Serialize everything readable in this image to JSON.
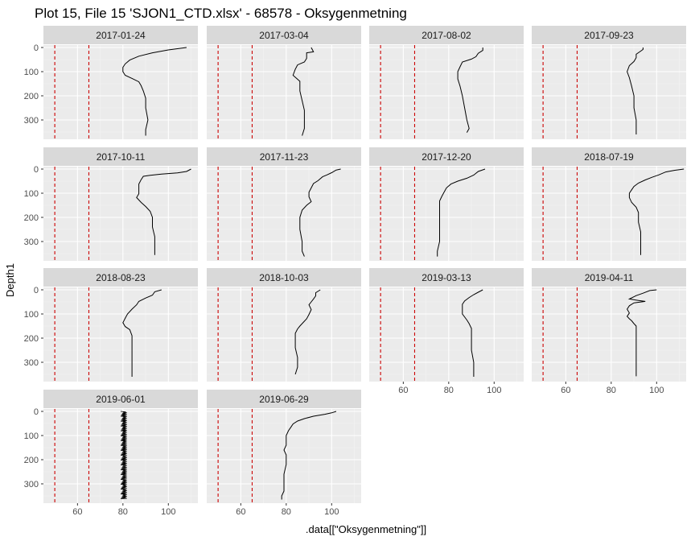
{
  "chart_data": {
    "type": "line",
    "title": "Plot 15, File 15 'SJON1_CTD.xlsx' - 68578  -  Oksygenmetning",
    "xlabel": ".data[[\"Oksygenmetning\"]]",
    "ylabel": "Depth1",
    "xlim": [
      45,
      113
    ],
    "ylim": [
      380,
      -10
    ],
    "y_reversed": true,
    "x_ticks": [
      60,
      80,
      100
    ],
    "y_ticks": [
      0,
      100,
      200,
      300
    ],
    "reference_lines_x": [
      50,
      65
    ],
    "reference_line_color": "#cc0000",
    "panel_background": "#ebebeb",
    "strip_background": "#d9d9d9",
    "grid": true,
    "facets": [
      {
        "label": "2017-01-24",
        "profile": [
          [
            108,
            0
          ],
          [
            100,
            10
          ],
          [
            93,
            22
          ],
          [
            87,
            36
          ],
          [
            83,
            52
          ],
          [
            81,
            68
          ],
          [
            80,
            82
          ],
          [
            80,
            100
          ],
          [
            81,
            115
          ],
          [
            84,
            128
          ],
          [
            87,
            142
          ],
          [
            88,
            158
          ],
          [
            89,
            180
          ],
          [
            90,
            210
          ],
          [
            90,
            250
          ],
          [
            91,
            300
          ],
          [
            90,
            340
          ],
          [
            90,
            365
          ]
        ]
      },
      {
        "label": "2017-03-04",
        "profile": [
          [
            91,
            0
          ],
          [
            92,
            18
          ],
          [
            89,
            22
          ],
          [
            89,
            45
          ],
          [
            88,
            60
          ],
          [
            85,
            72
          ],
          [
            84,
            90
          ],
          [
            83,
            115
          ],
          [
            86,
            140
          ],
          [
            86,
            180
          ],
          [
            87,
            220
          ],
          [
            88,
            260
          ],
          [
            88,
            300
          ],
          [
            88,
            335
          ],
          [
            87,
            365
          ]
        ]
      },
      {
        "label": "2017-08-02",
        "profile": [
          [
            95,
            0
          ],
          [
            95,
            12
          ],
          [
            93,
            24
          ],
          [
            92,
            38
          ],
          [
            90,
            48
          ],
          [
            86,
            60
          ],
          [
            85,
            80
          ],
          [
            84,
            100
          ],
          [
            84,
            130
          ],
          [
            85,
            160
          ],
          [
            86,
            200
          ],
          [
            87,
            250
          ],
          [
            88,
            300
          ],
          [
            89,
            335
          ],
          [
            88,
            352
          ]
        ]
      },
      {
        "label": "2017-09-23",
        "profile": [
          [
            94,
            0
          ],
          [
            94,
            8
          ],
          [
            93,
            15
          ],
          [
            91,
            28
          ],
          [
            91,
            42
          ],
          [
            90,
            58
          ],
          [
            88,
            75
          ],
          [
            87,
            100
          ],
          [
            88,
            125
          ],
          [
            89,
            160
          ],
          [
            90,
            200
          ],
          [
            90,
            250
          ],
          [
            91,
            300
          ],
          [
            91,
            360
          ]
        ]
      },
      {
        "label": "2017-10-11",
        "profile": [
          [
            110,
            0
          ],
          [
            108,
            10
          ],
          [
            104,
            16
          ],
          [
            97,
            21
          ],
          [
            92,
            26
          ],
          [
            89,
            30
          ],
          [
            88,
            44
          ],
          [
            87,
            62
          ],
          [
            87,
            82
          ],
          [
            87,
            102
          ],
          [
            86,
            118
          ],
          [
            88,
            138
          ],
          [
            90,
            155
          ],
          [
            92,
            175
          ],
          [
            93,
            200
          ],
          [
            93,
            240
          ],
          [
            94,
            280
          ],
          [
            94,
            320
          ],
          [
            94,
            356
          ]
        ]
      },
      {
        "label": "2017-11-23",
        "profile": [
          [
            104,
            0
          ],
          [
            102,
            4
          ],
          [
            100,
            15
          ],
          [
            98,
            24
          ],
          [
            96,
            32
          ],
          [
            94,
            48
          ],
          [
            92,
            60
          ],
          [
            91,
            78
          ],
          [
            90,
            96
          ],
          [
            90,
            115
          ],
          [
            91,
            135
          ],
          [
            89,
            150
          ],
          [
            87,
            170
          ],
          [
            86,
            200
          ],
          [
            86,
            250
          ],
          [
            87,
            300
          ],
          [
            87,
            340
          ],
          [
            88,
            362
          ]
        ]
      },
      {
        "label": "2017-12-20",
        "profile": [
          [
            96,
            0
          ],
          [
            93,
            10
          ],
          [
            91,
            25
          ],
          [
            88,
            38
          ],
          [
            84,
            50
          ],
          [
            81,
            62
          ],
          [
            79,
            78
          ],
          [
            78,
            95
          ],
          [
            77,
            112
          ],
          [
            76,
            132
          ],
          [
            76,
            160
          ],
          [
            76,
            200
          ],
          [
            76,
            250
          ],
          [
            76,
            300
          ],
          [
            75,
            340
          ],
          [
            75,
            362
          ]
        ]
      },
      {
        "label": "2018-07-19",
        "profile": [
          [
            112,
            0
          ],
          [
            108,
            5
          ],
          [
            104,
            12
          ],
          [
            101,
            24
          ],
          [
            98,
            34
          ],
          [
            95,
            45
          ],
          [
            92,
            58
          ],
          [
            90,
            72
          ],
          [
            89,
            86
          ],
          [
            88,
            100
          ],
          [
            88,
            118
          ],
          [
            89,
            138
          ],
          [
            91,
            158
          ],
          [
            92,
            180
          ],
          [
            92,
            220
          ],
          [
            93,
            260
          ],
          [
            93,
            300
          ],
          [
            93,
            356
          ]
        ]
      },
      {
        "label": "2018-08-23",
        "profile": [
          [
            97,
            0
          ],
          [
            94,
            8
          ],
          [
            93,
            22
          ],
          [
            90,
            34
          ],
          [
            87,
            48
          ],
          [
            86,
            62
          ],
          [
            84,
            80
          ],
          [
            82,
            100
          ],
          [
            81,
            118
          ],
          [
            80,
            136
          ],
          [
            81,
            152
          ],
          [
            83,
            165
          ],
          [
            84,
            190
          ],
          [
            84,
            230
          ],
          [
            84,
            270
          ],
          [
            84,
            310
          ],
          [
            84,
            360
          ]
        ]
      },
      {
        "label": "2018-10-03",
        "profile": [
          [
            95,
            0
          ],
          [
            93,
            12
          ],
          [
            93,
            25
          ],
          [
            92,
            38
          ],
          [
            91,
            50
          ],
          [
            90,
            62
          ],
          [
            91,
            82
          ],
          [
            90,
            102
          ],
          [
            89,
            120
          ],
          [
            87,
            140
          ],
          [
            86,
            150
          ],
          [
            85,
            162
          ],
          [
            84,
            180
          ],
          [
            84,
            200
          ],
          [
            84,
            240
          ],
          [
            85,
            280
          ],
          [
            85,
            320
          ],
          [
            84,
            350
          ]
        ]
      },
      {
        "label": "2019-03-13",
        "profile": [
          [
            95,
            0
          ],
          [
            93,
            10
          ],
          [
            91,
            20
          ],
          [
            89,
            32
          ],
          [
            87,
            46
          ],
          [
            86,
            60
          ],
          [
            86,
            80
          ],
          [
            86,
            100
          ],
          [
            88,
            125
          ],
          [
            89,
            140
          ],
          [
            90,
            160
          ],
          [
            90,
            200
          ],
          [
            90,
            250
          ],
          [
            91,
            300
          ],
          [
            91,
            360
          ]
        ]
      },
      {
        "label": "2019-04-11",
        "profile": [
          [
            100,
            0
          ],
          [
            97,
            3
          ],
          [
            94,
            14
          ],
          [
            91,
            24
          ],
          [
            88,
            38
          ],
          [
            92,
            44
          ],
          [
            95,
            48
          ],
          [
            90,
            54
          ],
          [
            88,
            66
          ],
          [
            87,
            80
          ],
          [
            88,
            96
          ],
          [
            87,
            110
          ],
          [
            88,
            120
          ],
          [
            89,
            128
          ],
          [
            90,
            140
          ],
          [
            91,
            150
          ],
          [
            91,
            180
          ],
          [
            91,
            220
          ],
          [
            91,
            260
          ],
          [
            91,
            300
          ],
          [
            91,
            340
          ],
          [
            91,
            358
          ]
        ]
      },
      {
        "label": "2019-06-01",
        "band": {
          "min": 79,
          "max": 82,
          "from": 0,
          "to": 362
        }
      },
      {
        "label": "2019-06-29",
        "profile": [
          [
            102,
            0
          ],
          [
            100,
            6
          ],
          [
            97,
            12
          ],
          [
            92,
            20
          ],
          [
            88,
            30
          ],
          [
            85,
            40
          ],
          [
            83,
            52
          ],
          [
            82,
            66
          ],
          [
            81,
            80
          ],
          [
            80,
            100
          ],
          [
            80,
            120
          ],
          [
            80,
            140
          ],
          [
            79,
            160
          ],
          [
            80,
            180
          ],
          [
            80,
            220
          ],
          [
            79,
            260
          ],
          [
            79,
            300
          ],
          [
            79,
            330
          ],
          [
            78,
            350
          ],
          [
            78,
            365
          ]
        ]
      }
    ]
  }
}
